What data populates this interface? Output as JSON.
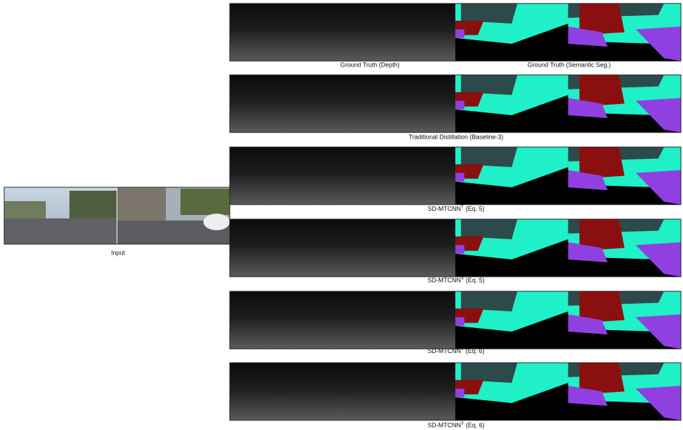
{
  "input": {
    "caption": "Input"
  },
  "rows": [
    {
      "captions": [
        "Ground Truth (Depth)",
        "Ground Truth (Semantic Seg.)"
      ]
    },
    {
      "caption": {
        "text": "Traditional Distillation (Baseline-3)"
      }
    },
    {
      "caption": {
        "name": "SD-MTCNN",
        "sup": "T",
        "eq": "(Eq. 5)"
      }
    },
    {
      "caption": {
        "name": "SD-MTCNN",
        "sup": "S",
        "eq": "(Eq. 5)"
      }
    },
    {
      "caption": {
        "name": "SD-MTCNN",
        "sup": "T",
        "eq": "(Eq. 6)"
      }
    },
    {
      "caption": {
        "name": "SD-MTCNN",
        "sup": "S",
        "eq": "(Eq. 6)"
      }
    }
  ]
}
